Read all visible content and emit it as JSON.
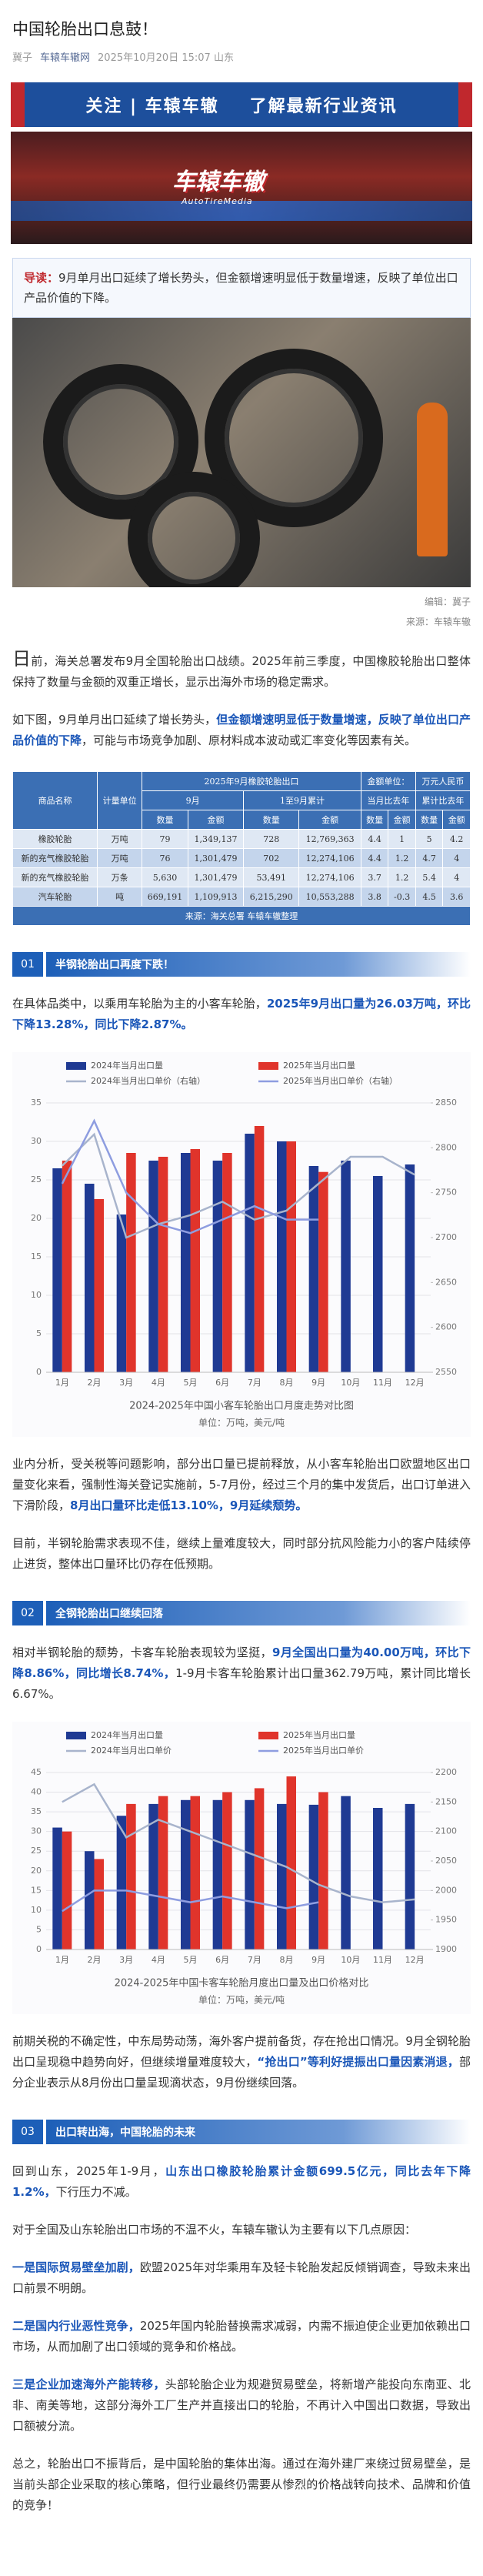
{
  "header": {
    "title": "中国轮胎出口息鼓！",
    "author": "冀子",
    "account": "车辕车辙网",
    "date": "2025年10月20日 15:07",
    "location": "山东"
  },
  "banner": {
    "follow": "关注 | 车辕车辙",
    "slogan": "了解最新行业资讯",
    "logo": "车辕车辙",
    "logo_sub": "AutoTireMedia"
  },
  "intro": {
    "label": "导读：",
    "text": "9月单月出口延续了增长势头，但金额增速明显低于数量增速，反映了单位出口产品价值的下降。"
  },
  "photo": {
    "editor": "编辑：冀子",
    "source": "来源：车辕车辙"
  },
  "lead": [
    [
      {
        "text": "日前，海关总署发布9月全国轮胎出口战绩。2025年前三季度，中国橡胶轮胎出口整体保持了数量与金额的双重正增长，显示出海外市场的稳定需求。"
      }
    ],
    [
      {
        "text": "如下图，9月单月出口延续了增长势头，"
      },
      {
        "text": "但金额增速明显低于数量增速，反映了单位出口产品价值的下降",
        "strong": true
      },
      {
        "text": "，可能与市场竞争加剧、原材料成本波动或汇率变化等因素有关。"
      }
    ]
  ],
  "table": {
    "title": "2025年9月橡胶轮胎出口",
    "unit": [
      "金额单位：",
      "万元人民币"
    ],
    "row_heads": [
      "商品名称",
      "计量单位"
    ],
    "groups": [
      "9月",
      "1至9月累计",
      "当月比去年",
      "累计比去年"
    ],
    "subs": [
      "数量",
      "金额",
      "数量",
      "金额",
      "数量",
      "金额",
      "数量",
      "金额"
    ],
    "rows": [
      [
        "橡胶轮胎",
        "万吨",
        "79",
        "1,349,137",
        "728",
        "12,769,363",
        "4.4",
        "1",
        "5",
        "4.2"
      ],
      [
        "新的充气橡胶轮胎",
        "万吨",
        "76",
        "1,301,479",
        "702",
        "12,274,106",
        "4.4",
        "1.2",
        "4.7",
        "4"
      ],
      [
        "新的充气橡胶轮胎",
        "万条",
        "5,630",
        "1,301,479",
        "53,491",
        "12,274,106",
        "3.7",
        "1.2",
        "5.4",
        "4"
      ],
      [
        "汽车轮胎",
        "吨",
        "669,191",
        "1,109,913",
        "6,215,290",
        "10,553,288",
        "3.8",
        "-0.3",
        "4.5",
        "3.6"
      ]
    ],
    "source": "来源：海关总署  车辕车辙整理"
  },
  "sections": [
    {
      "number": "01",
      "title": "半钢轮胎出口再度下跌！",
      "before": [
        [
          {
            "text": "在具体品类中，以乘用车轮胎为主的小客车轮胎，"
          },
          {
            "text": "2025年9月出口量为26.03万吨，环比下降13.28%，同比下降2.87%。",
            "strong": true
          }
        ]
      ],
      "after": [
        [
          {
            "text": "业内分析，受关税等问题影响，部分出口量已提前释放，从小客车轮胎出口欧盟地区出口量变化来看，强制性海关登记实施前，5-7月份，经过三个月的集中发货后，出口订单进入下滑阶段，"
          },
          {
            "text": "8月出口量环比走低13.10%，9月延续颓势。",
            "strong": true
          }
        ],
        [
          {
            "text": "目前，半钢轮胎需求表现不佳，继续上量难度较大，同时部分抗风险能力小的客户陆续停止进货，整体出口量环比仍存在低预期。"
          }
        ]
      ]
    },
    {
      "number": "02",
      "title": "全钢轮胎出口继续回落",
      "before": [
        [
          {
            "text": "相对半钢轮胎的颓势，卡客车轮胎表现较为坚挺，"
          },
          {
            "text": "9月全国出口量为40.00万吨，环比下降8.86%，同比增长8.74%，",
            "strong": true
          },
          {
            "text": "1-9月卡客车轮胎累计出口量362.79万吨，累计同比增长6.67%。"
          }
        ]
      ],
      "after": [
        [
          {
            "text": "前期关税的不确定性，中东局势动荡，海外客户提前备货，存在抢出口情况。9月全钢轮胎出口呈现稳中趋势向好，但继续增量难度较大，"
          },
          {
            "text": "“抢出口”等利好提振出口量因素消退，",
            "strong": true
          },
          {
            "text": "部分企业表示从8月份出口量呈现滴状态，9月份继续回落。"
          }
        ]
      ]
    },
    {
      "number": "03",
      "title": "出口转出海，中国轮胎的未来",
      "before": [
        [
          {
            "text": "回到山东，2025年1-9月，"
          },
          {
            "text": "山东出口橡胶轮胎累计金额699.5亿元，同比去年下降1.2%，",
            "strong": true
          },
          {
            "text": "下行压力不减。"
          }
        ],
        [
          {
            "text": "对于全国及山东轮胎出口市场的不温不火，车辕车辙认为主要有以下几点原因："
          }
        ],
        [
          {
            "text": "一是国际贸易壁垒加剧，",
            "strong": true
          },
          {
            "text": "欧盟2025年对华乘用车及轻卡轮胎发起反倾销调查，导致未来出口前景不明朗。"
          }
        ],
        [
          {
            "text": "二是国内行业恶性竞争，",
            "strong": true
          },
          {
            "text": "2025年国内轮胎替换需求减弱，内需不振迫使企业更加依赖出口市场，从而加剧了出口领域的竞争和价格战。"
          }
        ],
        [
          {
            "text": "三是企业加速海外产能转移，",
            "strong": true
          },
          {
            "text": "头部轮胎企业为规避贸易壁垒，将新增产能投向东南亚、北非、南美等地，这部分海外工厂生产并直接出口的轮胎，不再计入中国出口数据，导致出口额被分流。"
          }
        ],
        [
          {
            "text": "总之，轮胎出口不振背后，是中国轮胎的集体出海。通过在海外建厂来绕过贸易壁垒，是当前头部企业采取的核心策略，但行业最终仍需要从惨烈的价格战转向技术、品牌和价值的竞争！"
          }
        ]
      ],
      "after": []
    }
  ],
  "chart_data": [
    {
      "type": "bar",
      "title": "2024-2025年中国小客车轮胎出口月度走势对比图",
      "subtitle": "单位：万吨，美元/吨",
      "categories": [
        "1月",
        "2月",
        "3月",
        "4月",
        "5月",
        "6月",
        "7月",
        "8月",
        "9月",
        "10月",
        "11月",
        "12月"
      ],
      "series": [
        {
          "name": "2024年当月出口量",
          "color": "#1f3a93",
          "type": "bar",
          "values": [
            26.5,
            24.5,
            20.5,
            27.5,
            28.5,
            27.5,
            31.0,
            30.0,
            26.8,
            27.5,
            25.5,
            27.0
          ]
        },
        {
          "name": "2025年当月出口量",
          "color": "#e0342b",
          "type": "bar",
          "values": [
            27.5,
            22.5,
            28.5,
            28.0,
            29.0,
            28.5,
            32.0,
            30.0,
            26.03,
            null,
            null,
            null
          ]
        },
        {
          "name": "2024年当月出口单价（右轴）",
          "color": "#a8b4cc",
          "type": "line",
          "axis": "y2",
          "values": [
            2780,
            2815,
            2700,
            2715,
            2725,
            2740,
            2720,
            2730,
            2760,
            2790,
            2790,
            2770
          ]
        },
        {
          "name": "2025年当月出口单价（右轴）",
          "color": "#8e9de0",
          "type": "line",
          "axis": "y2",
          "values": [
            2760,
            2830,
            2750,
            2715,
            2705,
            2720,
            2735,
            2720,
            2720,
            null,
            null,
            null
          ]
        }
      ],
      "ylim": [
        0,
        35
      ],
      "yticks": [
        0,
        5,
        10,
        15,
        20,
        25,
        30,
        35
      ],
      "y2lim": [
        2550,
        2850
      ],
      "y2ticks": [
        2550,
        2600,
        2650,
        2700,
        2750,
        2800,
        2850
      ],
      "grid": true,
      "legend": "top"
    },
    {
      "type": "bar",
      "title": "2024-2025年中国卡客车轮胎月度出口量及出口价格对比",
      "subtitle": "单位：万吨，美元/吨",
      "categories": [
        "1月",
        "2月",
        "3月",
        "4月",
        "5月",
        "6月",
        "7月",
        "8月",
        "9月",
        "10月",
        "11月",
        "12月"
      ],
      "series": [
        {
          "name": "2024年当月出口量",
          "color": "#1f3a93",
          "type": "bar",
          "values": [
            31,
            25,
            34,
            37,
            38,
            38,
            38,
            37,
            36.8,
            39,
            36,
            37
          ]
        },
        {
          "name": "2025年当月出口量",
          "color": "#e0342b",
          "type": "bar",
          "values": [
            30,
            23,
            37,
            39,
            39,
            40,
            41,
            44,
            40.0,
            null,
            null,
            null
          ]
        },
        {
          "name": "2024年当月出口单价",
          "color": "#a8b4cc",
          "type": "line",
          "axis": "y2",
          "values": [
            2150,
            2180,
            2090,
            2120,
            2100,
            2080,
            2060,
            2040,
            2010,
            1990,
            1980,
            1985
          ]
        },
        {
          "name": "2025年当月出口单价",
          "color": "#8e9de0",
          "type": "line",
          "axis": "y2",
          "values": [
            1965,
            2000,
            2000,
            1990,
            1980,
            1990,
            1980,
            1970,
            1980,
            null,
            null,
            null
          ]
        }
      ],
      "ylim": [
        0,
        45
      ],
      "yticks": [
        0,
        5,
        10,
        15,
        20,
        25,
        30,
        35,
        40,
        45
      ],
      "y2lim": [
        1900,
        2200
      ],
      "y2ticks": [
        1900,
        1950,
        2000,
        2050,
        2100,
        2150,
        2200
      ],
      "grid": true,
      "legend": "top"
    }
  ]
}
